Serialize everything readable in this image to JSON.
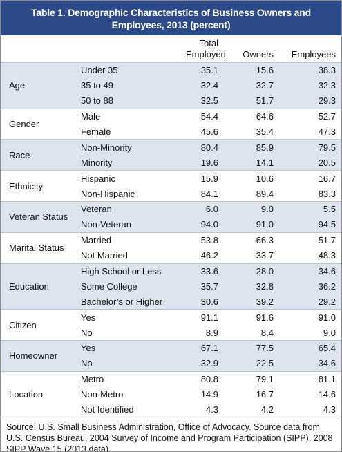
{
  "title": "Table 1. Demographic Characteristics of Business Owners and Employees, 2013 (percent)",
  "columns": [
    "Total Employed",
    "Owners",
    "Employees"
  ],
  "groups": [
    {
      "label": "Age",
      "rows": [
        {
          "label": "Under 35",
          "values": [
            "35.1",
            "15.6",
            "38.3"
          ]
        },
        {
          "label": "35 to 49",
          "values": [
            "32.4",
            "32.7",
            "32.3"
          ]
        },
        {
          "label": "50 to 88",
          "values": [
            "32.5",
            "51.7",
            "29.3"
          ]
        }
      ]
    },
    {
      "label": "Gender",
      "rows": [
        {
          "label": "Male",
          "values": [
            "54.4",
            "64.6",
            "52.7"
          ]
        },
        {
          "label": "Female",
          "values": [
            "45.6",
            "35.4",
            "47.3"
          ]
        }
      ]
    },
    {
      "label": "Race",
      "rows": [
        {
          "label": "Non-Minority",
          "values": [
            "80.4",
            "85.9",
            "79.5"
          ]
        },
        {
          "label": "Minority",
          "values": [
            "19.6",
            "14.1",
            "20.5"
          ]
        }
      ]
    },
    {
      "label": "Ethnicity",
      "rows": [
        {
          "label": "Hispanic",
          "values": [
            "15.9",
            "10.6",
            "16.7"
          ]
        },
        {
          "label": "Non-Hispanic",
          "values": [
            "84.1",
            "89.4",
            "83.3"
          ]
        }
      ]
    },
    {
      "label": "Veteran Status",
      "rows": [
        {
          "label": "Veteran",
          "values": [
            "6.0",
            "9.0",
            "5.5"
          ]
        },
        {
          "label": "Non-Veteran",
          "values": [
            "94.0",
            "91.0",
            "94.5"
          ]
        }
      ]
    },
    {
      "label": "Marital Status",
      "rows": [
        {
          "label": "Married",
          "values": [
            "53.8",
            "66.3",
            "51.7"
          ]
        },
        {
          "label": "Not Married",
          "values": [
            "46.2",
            "33.7",
            "48.3"
          ]
        }
      ]
    },
    {
      "label": "Education",
      "rows": [
        {
          "label": "High School or Less",
          "values": [
            "33.6",
            "28.0",
            "34.6"
          ]
        },
        {
          "label": "Some College",
          "values": [
            "35.7",
            "32.8",
            "36.2"
          ]
        },
        {
          "label": "Bachelor’s or Higher",
          "values": [
            "30.6",
            "39.2",
            "29.2"
          ]
        }
      ]
    },
    {
      "label": "Citizen",
      "rows": [
        {
          "label": "Yes",
          "values": [
            "91.1",
            "91.6",
            "91.0"
          ]
        },
        {
          "label": "No",
          "values": [
            "8.9",
            "8.4",
            "9.0"
          ]
        }
      ]
    },
    {
      "label": "Homeowner",
      "rows": [
        {
          "label": "Yes",
          "values": [
            "67.1",
            "77.5",
            "65.4"
          ]
        },
        {
          "label": "No",
          "values": [
            "32.9",
            "22.5",
            "34.6"
          ]
        }
      ]
    },
    {
      "label": "Location",
      "rows": [
        {
          "label": "Metro",
          "values": [
            "80.8",
            "79.1",
            "81.1"
          ]
        },
        {
          "label": "Non-Metro",
          "values": [
            "14.9",
            "16.7",
            "14.6"
          ]
        },
        {
          "label": "Not Identified",
          "values": [
            "4.3",
            "4.2",
            "4.3"
          ]
        }
      ]
    }
  ],
  "source": "Source: U.S. Small Business Administration, Office of Advocacy. Source data from U.S. Census Bureau, 2004 Survey of Income and Program Participation (SIPP), 2008 SIPP Wave 15 (2013 data)."
}
